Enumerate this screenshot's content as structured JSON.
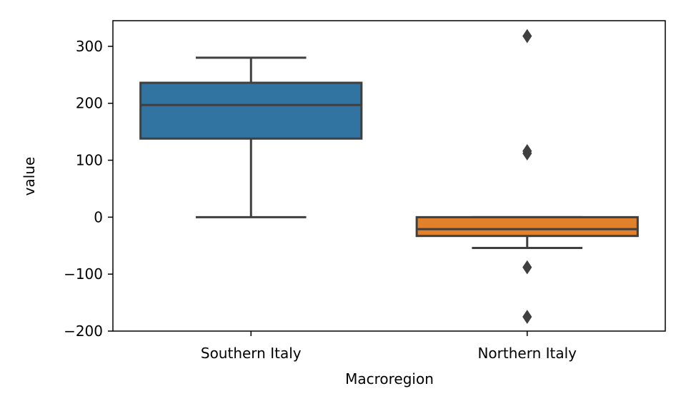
{
  "chart_data": {
    "type": "box",
    "xlabel": "Macroregion",
    "ylabel": "value",
    "ylim": [
      -200,
      345
    ],
    "yticks": [
      -200,
      -100,
      0,
      100,
      200,
      300
    ],
    "ytick_labels": [
      "−200",
      "−100",
      "0",
      "100",
      "200",
      "300"
    ],
    "grid": false,
    "categories": [
      "Southern Italy",
      "Northern Italy"
    ],
    "boxes": [
      {
        "category": "Southern Italy",
        "color": "#3274a1",
        "whisker_low": 0,
        "q1": 138,
        "median": 197,
        "q3": 236,
        "whisker_high": 280,
        "outliers": []
      },
      {
        "category": "Northern Italy",
        "color": "#e1812c",
        "whisker_low": -54,
        "q1": -33,
        "median": -21,
        "q3": 0,
        "whisker_high": 0,
        "outliers": [
          318,
          116,
          112,
          -88,
          -175
        ]
      }
    ],
    "line_color": "#3f3f3f"
  }
}
